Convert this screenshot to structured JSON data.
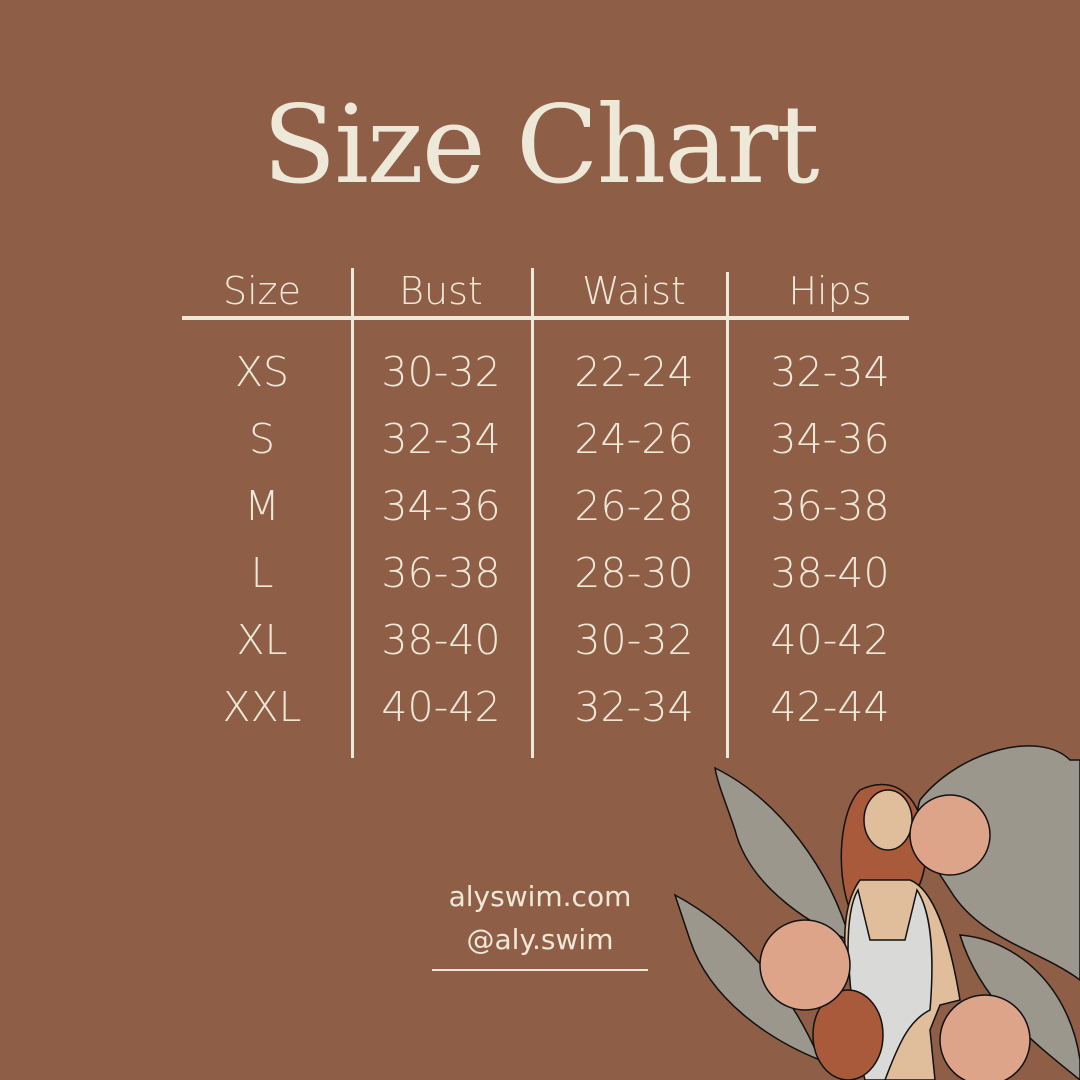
{
  "title": "Size Chart",
  "table": {
    "headers": [
      "Size",
      "Bust",
      "Waist",
      "Hips"
    ],
    "rows": [
      [
        "XS",
        "30-32",
        "22-24",
        "32-34"
      ],
      [
        "S",
        "32-34",
        "24-26",
        "34-36"
      ],
      [
        "M",
        "34-36",
        "26-28",
        "36-38"
      ],
      [
        "L",
        "36-38",
        "28-30",
        "38-40"
      ],
      [
        "XL",
        "38-40",
        "30-32",
        "40-42"
      ],
      [
        "XXL",
        "40-42",
        "32-34",
        "42-44"
      ]
    ]
  },
  "footer": {
    "website": "alyswim.com",
    "handle": "@aly.swim"
  },
  "colors": {
    "background": "#8F5E46",
    "text": "#EEE8D8",
    "leaf": "#9C978D",
    "flower": "#DDA48A",
    "skin": "#E0BE9C",
    "hair": "#A85A3A",
    "swimsuit": "#D9D9D7"
  },
  "illustration": "woman-in-swimsuit-with-tropical-leaves-and-hibiscus"
}
